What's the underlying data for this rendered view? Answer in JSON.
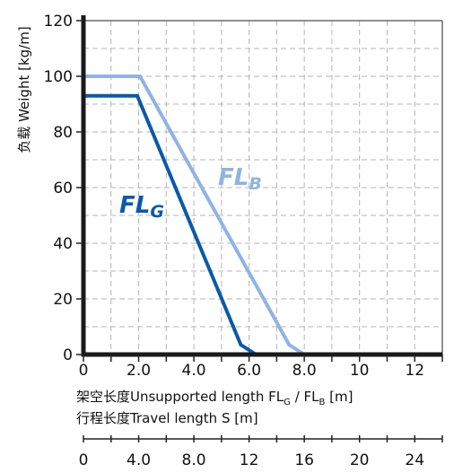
{
  "chart_data": {
    "type": "line",
    "ylabel": "负载 Weight  [kg/m]",
    "xlabel": "架空长度Unsupported length FLG / FLB [m]",
    "xlabel_parts": {
      "prefix": "架空长度Unsupported length FL",
      "sub1": "G",
      "middle": " / FL",
      "sub2": "B",
      "suffix": " [m]"
    },
    "x2label": "行程长度Travel length S [m]",
    "xlim": [
      0,
      13
    ],
    "ylim": [
      0,
      120
    ],
    "x2lim": [
      0,
      26
    ],
    "x_ticks": [
      "0",
      "2.0",
      "4.0",
      "6.0",
      "8.0",
      "10",
      "12"
    ],
    "y_ticks": [
      "0",
      "20",
      "40",
      "60",
      "80",
      "100",
      "120"
    ],
    "x2_ticks": [
      "0",
      "4.0",
      "8.0",
      "12",
      "16",
      "20",
      "24"
    ],
    "grid": true,
    "series": [
      {
        "name": "FLG",
        "base": "FL",
        "sub": "G",
        "color": "#0a5aa8",
        "points": [
          [
            0,
            93
          ],
          [
            1.95,
            93
          ],
          [
            5.7,
            3.5
          ],
          [
            6.25,
            0
          ]
        ]
      },
      {
        "name": "FLB",
        "base": "FL",
        "sub": "B",
        "color": "#8fb4e3",
        "points": [
          [
            0,
            100
          ],
          [
            2.05,
            100
          ],
          [
            7.45,
            3.5
          ],
          [
            8.0,
            0
          ]
        ]
      }
    ]
  }
}
